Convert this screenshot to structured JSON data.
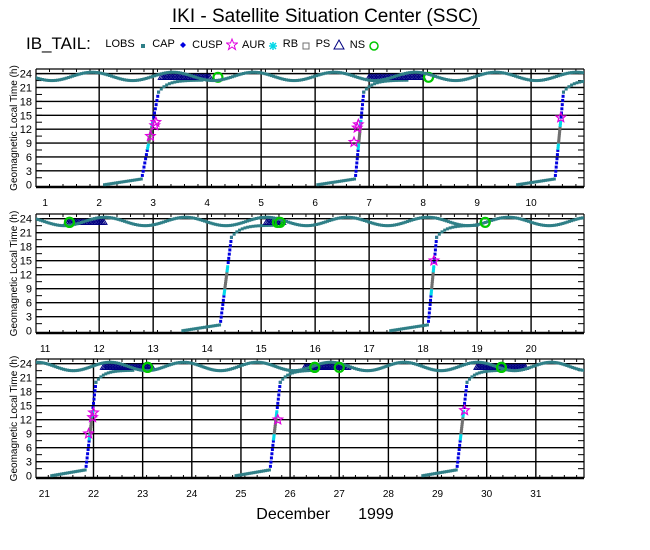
{
  "header": {
    "title": "IKI - Satellite Situation Center (SSC)"
  },
  "legend": {
    "mission": "IB_TAIL:",
    "items": [
      {
        "label": "LOBS",
        "marker": "small-square",
        "color": "#2f7f87"
      },
      {
        "label": "CAP",
        "marker": "filled-diamond",
        "color": "#0000e0"
      },
      {
        "label": "CUSP",
        "marker": "star",
        "color": "#e000e0"
      },
      {
        "label": "AUR",
        "marker": "asterisk",
        "color": "#00d8e8"
      },
      {
        "label": "RB",
        "marker": "open-square",
        "color": "#707070"
      },
      {
        "label": "PS",
        "marker": "open-triangle",
        "color": "#000080"
      },
      {
        "label": "NS",
        "marker": "open-circle",
        "color": "#00c800"
      }
    ]
  },
  "footer": {
    "month": "December",
    "year": "1999"
  },
  "colors": {
    "lobs": "#2f7f87",
    "cap": "#0000e0",
    "cusp": "#e000e0",
    "aur": "#00d8e8",
    "rb": "#707070",
    "ps": "#000080",
    "ns": "#00c800",
    "grid": "#000000"
  },
  "chart_data": [
    {
      "type": "scatter",
      "title": "IKI - Satellite Situation Center (SSC)",
      "xlabel": "December 1999",
      "ylabel": "Geomagnetic Local Time (h)",
      "xlim": [
        0.83,
        10.98
      ],
      "ylim": [
        -0.5,
        25
      ],
      "yticks": [
        0,
        3,
        6,
        9,
        12,
        15,
        18,
        21,
        24
      ],
      "xticks": [
        1,
        2,
        3,
        4,
        5,
        6,
        7,
        8,
        9,
        10
      ],
      "grid": true,
      "crossings": [
        {
          "t0": 2.8,
          "t1": 3.1,
          "ps_start": 3.15,
          "ps_end": 4.05,
          "ns": 4.2
        },
        {
          "t0": 6.75,
          "t1": 6.9,
          "ps_start": 7.0,
          "ps_end": 8.0,
          "ns": 8.1
        },
        {
          "t0": 10.45,
          "t1": 10.6,
          "ps_start": null,
          "ps_end": null,
          "ns": null
        }
      ],
      "cusp_points": [
        [
          2.95,
          10.5
        ],
        [
          3.05,
          13.5
        ],
        [
          3.03,
          12.8
        ],
        [
          6.72,
          9.2
        ],
        [
          6.8,
          13.0
        ],
        [
          6.78,
          12.3
        ],
        [
          10.55,
          14.5
        ]
      ]
    },
    {
      "type": "scatter",
      "xlim": [
        10.83,
        20.98
      ],
      "ylim": [
        -0.5,
        25
      ],
      "yticks": [
        0,
        3,
        6,
        9,
        12,
        15,
        18,
        21,
        24
      ],
      "xticks": [
        11,
        12,
        13,
        14,
        15,
        16,
        17,
        18,
        19,
        20
      ],
      "grid": true,
      "crossings": [
        {
          "t0": 14.25,
          "t1": 14.45,
          "ps_start": 11.4,
          "ps_end": 12.1,
          "ns": 11.45
        },
        {
          "t0": 18.1,
          "t1": 18.25,
          "ps_start": 15.1,
          "ps_end": 15.4,
          "ns": 15.3
        }
      ],
      "ps_segments": [
        [
          11.4,
          12.1
        ],
        [
          15.2,
          15.45
        ],
        [
          19.0,
          19.3
        ]
      ],
      "ns_points": [
        11.45,
        15.35,
        19.15
      ],
      "cusp_points": [
        [
          18.2,
          15.0
        ]
      ]
    },
    {
      "type": "scatter",
      "xlim": [
        20.83,
        31.98
      ],
      "ylim": [
        -0.5,
        25
      ],
      "yticks": [
        0,
        3,
        6,
        9,
        12,
        15,
        18,
        21,
        24
      ],
      "xticks": [
        21,
        22,
        23,
        24,
        25,
        26,
        27,
        28,
        29,
        30,
        31
      ],
      "grid": true,
      "crossings": [
        {
          "t0": 21.85,
          "t1": 22.05,
          "ps_start": 22.2,
          "ps_end": 23.2,
          "ns": 23.1
        },
        {
          "t0": 25.6,
          "t1": 25.8,
          "ps_start": 26.3,
          "ps_end": 27.2,
          "ns": 26.5
        },
        {
          "t0": 29.4,
          "t1": 29.6,
          "ps_start": 29.8,
          "ps_end": 30.8,
          "ns": 30.3
        }
      ],
      "ns_points": [
        23.1,
        26.5,
        27.0,
        30.3
      ],
      "cusp_points": [
        [
          21.9,
          9.0
        ],
        [
          21.98,
          12.5
        ],
        [
          22.0,
          13.5
        ],
        [
          25.75,
          12.0
        ],
        [
          29.55,
          14.0
        ]
      ]
    }
  ]
}
